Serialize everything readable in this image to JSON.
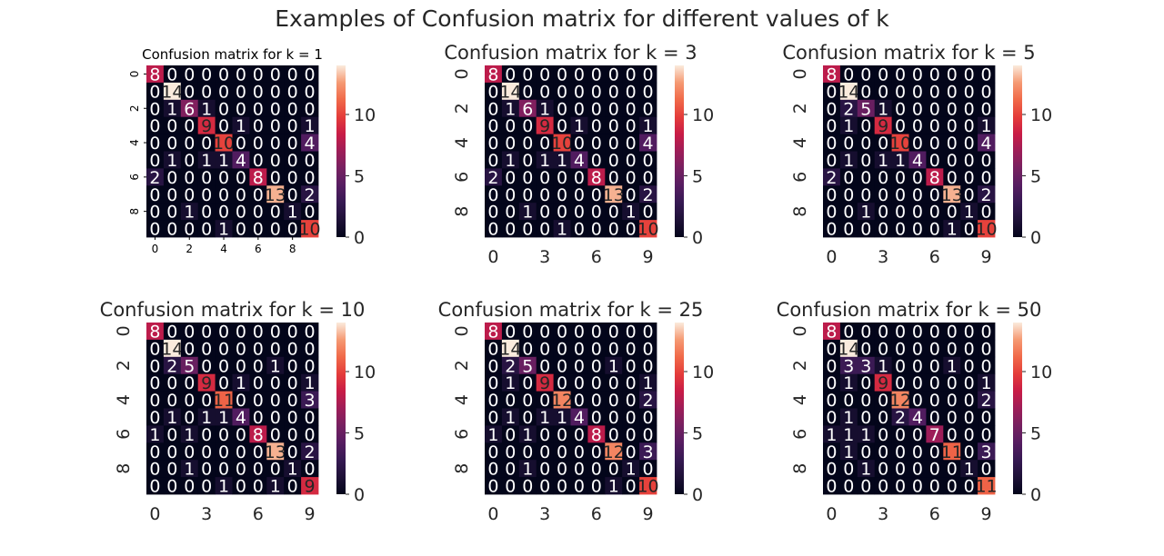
{
  "suptitle": "Examples of Confusion matrix for different values of k",
  "colormap": "rocket",
  "annotation_colors": {
    "dark_cells": "#ffffff",
    "light_cells": "#262626"
  },
  "chart_data": [
    {
      "type": "heatmap",
      "title": "Confusion matrix for k = 1",
      "xlabel": "",
      "ylabel": "",
      "x_ticks": [
        "0",
        "2",
        "4",
        "6",
        "8"
      ],
      "y_ticks": [
        "0",
        "2",
        "4",
        "6",
        "8"
      ],
      "colorbar": {
        "min": 0,
        "max": 14,
        "ticks": [
          "0",
          "5",
          "10"
        ]
      },
      "matrix": [
        [
          8,
          0,
          0,
          0,
          0,
          0,
          0,
          0,
          0,
          0
        ],
        [
          0,
          14,
          0,
          0,
          0,
          0,
          0,
          0,
          0,
          0
        ],
        [
          0,
          1,
          6,
          1,
          0,
          0,
          0,
          0,
          0,
          0
        ],
        [
          0,
          0,
          0,
          9,
          0,
          1,
          0,
          0,
          0,
          1
        ],
        [
          0,
          0,
          0,
          0,
          10,
          0,
          0,
          0,
          0,
          4
        ],
        [
          0,
          1,
          0,
          1,
          1,
          4,
          0,
          0,
          0,
          0
        ],
        [
          2,
          0,
          0,
          0,
          0,
          0,
          8,
          0,
          0,
          0
        ],
        [
          0,
          0,
          0,
          0,
          0,
          0,
          0,
          13,
          0,
          2
        ],
        [
          0,
          0,
          1,
          0,
          0,
          0,
          0,
          0,
          1,
          0
        ],
        [
          0,
          0,
          0,
          0,
          1,
          0,
          0,
          0,
          0,
          10
        ]
      ]
    },
    {
      "type": "heatmap",
      "title": "Confusion matrix for k = 3",
      "xlabel": "",
      "ylabel": "",
      "x_ticks": [
        "0",
        "3",
        "6",
        "9"
      ],
      "y_ticks": [
        "0",
        "2",
        "4",
        "6",
        "8"
      ],
      "colorbar": {
        "min": 0,
        "max": 14,
        "ticks": [
          "0",
          "5",
          "10"
        ]
      },
      "matrix": [
        [
          8,
          0,
          0,
          0,
          0,
          0,
          0,
          0,
          0,
          0
        ],
        [
          0,
          14,
          0,
          0,
          0,
          0,
          0,
          0,
          0,
          0
        ],
        [
          0,
          1,
          6,
          1,
          0,
          0,
          0,
          0,
          0,
          0
        ],
        [
          0,
          0,
          0,
          9,
          0,
          1,
          0,
          0,
          0,
          1
        ],
        [
          0,
          0,
          0,
          0,
          10,
          0,
          0,
          0,
          0,
          4
        ],
        [
          0,
          1,
          0,
          1,
          1,
          4,
          0,
          0,
          0,
          0
        ],
        [
          2,
          0,
          0,
          0,
          0,
          0,
          8,
          0,
          0,
          0
        ],
        [
          0,
          0,
          0,
          0,
          0,
          0,
          0,
          13,
          0,
          2
        ],
        [
          0,
          0,
          1,
          0,
          0,
          0,
          0,
          0,
          1,
          0
        ],
        [
          0,
          0,
          0,
          0,
          1,
          0,
          0,
          0,
          0,
          10
        ]
      ]
    },
    {
      "type": "heatmap",
      "title": "Confusion matrix for k = 5",
      "xlabel": "",
      "ylabel": "",
      "x_ticks": [
        "0",
        "3",
        "6",
        "9"
      ],
      "y_ticks": [
        "0",
        "2",
        "4",
        "6",
        "8"
      ],
      "colorbar": {
        "min": 0,
        "max": 14,
        "ticks": [
          "0",
          "5",
          "10"
        ]
      },
      "matrix": [
        [
          8,
          0,
          0,
          0,
          0,
          0,
          0,
          0,
          0,
          0
        ],
        [
          0,
          14,
          0,
          0,
          0,
          0,
          0,
          0,
          0,
          0
        ],
        [
          0,
          2,
          5,
          1,
          0,
          0,
          0,
          0,
          0,
          0
        ],
        [
          0,
          1,
          0,
          9,
          0,
          0,
          0,
          0,
          0,
          1
        ],
        [
          0,
          0,
          0,
          0,
          10,
          0,
          0,
          0,
          0,
          4
        ],
        [
          0,
          1,
          0,
          1,
          1,
          4,
          0,
          0,
          0,
          0
        ],
        [
          2,
          0,
          0,
          0,
          0,
          0,
          8,
          0,
          0,
          0
        ],
        [
          0,
          0,
          0,
          0,
          0,
          0,
          0,
          13,
          0,
          2
        ],
        [
          0,
          0,
          1,
          0,
          0,
          0,
          0,
          0,
          1,
          0
        ],
        [
          0,
          0,
          0,
          0,
          0,
          0,
          0,
          1,
          0,
          10
        ]
      ]
    },
    {
      "type": "heatmap",
      "title": "Confusion matrix for k = 10",
      "xlabel": "",
      "ylabel": "",
      "x_ticks": [
        "0",
        "3",
        "6",
        "9"
      ],
      "y_ticks": [
        "0",
        "2",
        "4",
        "6",
        "8"
      ],
      "colorbar": {
        "min": 0,
        "max": 14,
        "ticks": [
          "0",
          "5",
          "10"
        ]
      },
      "matrix": [
        [
          8,
          0,
          0,
          0,
          0,
          0,
          0,
          0,
          0,
          0
        ],
        [
          0,
          14,
          0,
          0,
          0,
          0,
          0,
          0,
          0,
          0
        ],
        [
          0,
          2,
          5,
          0,
          0,
          0,
          0,
          1,
          0,
          0
        ],
        [
          0,
          0,
          0,
          9,
          0,
          1,
          0,
          0,
          0,
          1
        ],
        [
          0,
          0,
          0,
          0,
          11,
          0,
          0,
          0,
          0,
          3
        ],
        [
          0,
          1,
          0,
          1,
          1,
          4,
          0,
          0,
          0,
          0
        ],
        [
          1,
          0,
          1,
          0,
          0,
          0,
          8,
          0,
          0,
          0
        ],
        [
          0,
          0,
          0,
          0,
          0,
          0,
          0,
          13,
          0,
          2
        ],
        [
          0,
          0,
          1,
          0,
          0,
          0,
          0,
          0,
          1,
          0
        ],
        [
          0,
          0,
          0,
          0,
          1,
          0,
          0,
          1,
          0,
          9
        ]
      ]
    },
    {
      "type": "heatmap",
      "title": "Confusion matrix for k = 25",
      "xlabel": "",
      "ylabel": "",
      "x_ticks": [
        "0",
        "3",
        "6",
        "9"
      ],
      "y_ticks": [
        "0",
        "2",
        "4",
        "6",
        "8"
      ],
      "colorbar": {
        "min": 0,
        "max": 14,
        "ticks": [
          "0",
          "5",
          "10"
        ]
      },
      "matrix": [
        [
          8,
          0,
          0,
          0,
          0,
          0,
          0,
          0,
          0,
          0
        ],
        [
          0,
          14,
          0,
          0,
          0,
          0,
          0,
          0,
          0,
          0
        ],
        [
          0,
          2,
          5,
          0,
          0,
          0,
          0,
          1,
          0,
          0
        ],
        [
          0,
          1,
          0,
          9,
          0,
          0,
          0,
          0,
          0,
          1
        ],
        [
          0,
          0,
          0,
          0,
          12,
          0,
          0,
          0,
          0,
          2
        ],
        [
          0,
          1,
          0,
          1,
          1,
          4,
          0,
          0,
          0,
          0
        ],
        [
          1,
          0,
          1,
          0,
          0,
          0,
          8,
          0,
          0,
          0
        ],
        [
          0,
          0,
          0,
          0,
          0,
          0,
          0,
          12,
          0,
          3
        ],
        [
          0,
          0,
          1,
          0,
          0,
          0,
          0,
          0,
          1,
          0
        ],
        [
          0,
          0,
          0,
          0,
          0,
          0,
          0,
          1,
          0,
          10
        ]
      ]
    },
    {
      "type": "heatmap",
      "title": "Confusion matrix for k = 50",
      "xlabel": "",
      "ylabel": "",
      "x_ticks": [
        "0",
        "3",
        "6",
        "9"
      ],
      "y_ticks": [
        "0",
        "2",
        "4",
        "6",
        "8"
      ],
      "colorbar": {
        "min": 0,
        "max": 14,
        "ticks": [
          "0",
          "5",
          "10"
        ]
      },
      "matrix": [
        [
          8,
          0,
          0,
          0,
          0,
          0,
          0,
          0,
          0,
          0
        ],
        [
          0,
          14,
          0,
          0,
          0,
          0,
          0,
          0,
          0,
          0
        ],
        [
          0,
          3,
          3,
          1,
          0,
          0,
          0,
          1,
          0,
          0
        ],
        [
          0,
          1,
          0,
          9,
          0,
          0,
          0,
          0,
          0,
          1
        ],
        [
          0,
          0,
          0,
          0,
          12,
          0,
          0,
          0,
          0,
          2
        ],
        [
          0,
          1,
          0,
          0,
          2,
          4,
          0,
          0,
          0,
          0
        ],
        [
          1,
          1,
          1,
          0,
          0,
          0,
          7,
          0,
          0,
          0
        ],
        [
          0,
          1,
          0,
          0,
          0,
          0,
          0,
          11,
          0,
          3
        ],
        [
          0,
          0,
          1,
          0,
          0,
          0,
          0,
          0,
          1,
          0
        ],
        [
          0,
          0,
          0,
          0,
          0,
          0,
          0,
          0,
          0,
          11
        ]
      ]
    }
  ]
}
